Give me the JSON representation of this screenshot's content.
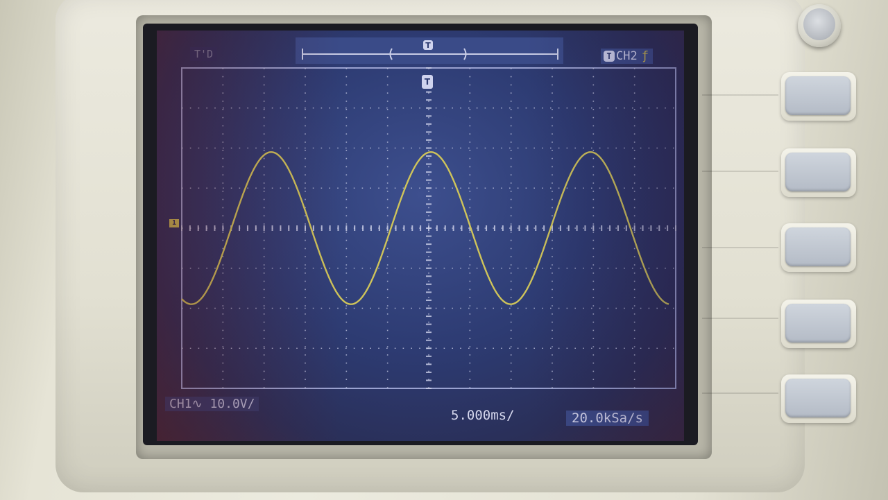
{
  "screen": {
    "status_top_left": "T'D",
    "trigger_channel": "CH2",
    "trigger_icon_letter": "T",
    "trigger_edge_icon": "rising-edge-icon",
    "ch1_label": "CH1",
    "ch1_coupling_icon": "ac-coupling-icon",
    "ch1_scale": "10.0V/",
    "timebase": "5.000ms/",
    "sample_rate": "20.0kSa/s",
    "ch1_ground_marker": "1"
  },
  "colors": {
    "lcd_background": "#2d3b72",
    "grid": "#c9cde6",
    "trace": "#cfc45a",
    "timebar": "#3a4b88"
  },
  "side_buttons": {
    "count": 5
  },
  "signal": {
    "waveform": "sine",
    "cycles_shown": 3,
    "peak_divisions": 1.9
  }
}
